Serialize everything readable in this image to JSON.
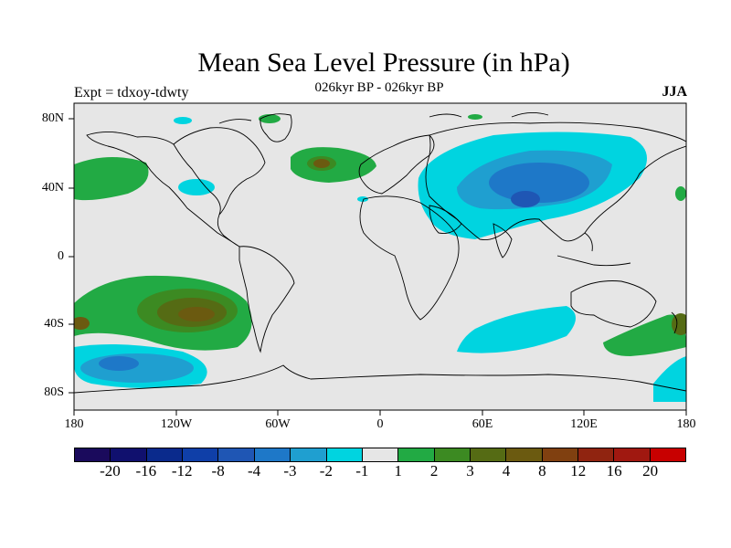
{
  "title": "Mean Sea Level Pressure (in hPa)",
  "subtitle": "026kyr BP - 026kyr BP",
  "experiment": "Expt = tdxoy-tdwty",
  "season": "JJA",
  "lat_labels": [
    "80N",
    "40N",
    "0",
    "40S",
    "80S"
  ],
  "lon_labels": [
    "180",
    "120W",
    "60W",
    "0",
    "60E",
    "120E",
    "180"
  ],
  "colorbar": {
    "colors": [
      "#1a0a5c",
      "#10106e",
      "#0a2a8c",
      "#0f3fa8",
      "#1f56b4",
      "#1e78c8",
      "#1f9fd0",
      "#00d4e0",
      "#e6e6e6",
      "#22aa44",
      "#3c8a22",
      "#556b14",
      "#6b5a10",
      "#804010",
      "#902410",
      "#a01810",
      "#c80000"
    ],
    "labels": [
      "-20",
      "-16",
      "-12",
      "-8",
      "-4",
      "-3",
      "-2",
      "-1",
      "1",
      "2",
      "3",
      "4",
      "8",
      "12",
      "16",
      "20"
    ]
  },
  "chart_data": {
    "type": "heatmap",
    "title": "Mean Sea Level Pressure (in hPa)",
    "subtitle": "026kyr BP - 026kyr BP",
    "xlabel": "",
    "ylabel": "",
    "x_ticks": [
      "180",
      "120W",
      "60W",
      "0",
      "60E",
      "120E",
      "180"
    ],
    "y_ticks": [
      "80N",
      "40N",
      "0",
      "40S",
      "80S"
    ],
    "contour_levels": [
      -20,
      -16,
      -12,
      -8,
      -4,
      -3,
      -2,
      -1,
      1,
      2,
      3,
      4,
      8,
      12,
      16,
      20
    ],
    "regions": [
      {
        "location": "South Pacific (~40S, 100W)",
        "sign": "positive",
        "max_level": 4
      },
      {
        "location": "Central Asia (~40N, 90E)",
        "sign": "negative",
        "min_level": -4
      },
      {
        "location": "North Atlantic (~50N, 35W)",
        "sign": "positive",
        "max_level": 4
      },
      {
        "location": "Southern Ocean (~60S, 140W)",
        "sign": "negative",
        "min_level": -4
      },
      {
        "location": "North Pacific (~45N, 160W)",
        "sign": "positive",
        "max_level": 2
      },
      {
        "location": "South Indian Ocean (~45S, 60E)",
        "sign": "negative",
        "min_level": -2
      },
      {
        "location": "SW Pacific (~50S, 170E)",
        "sign": "positive",
        "max_level": 3
      }
    ]
  }
}
